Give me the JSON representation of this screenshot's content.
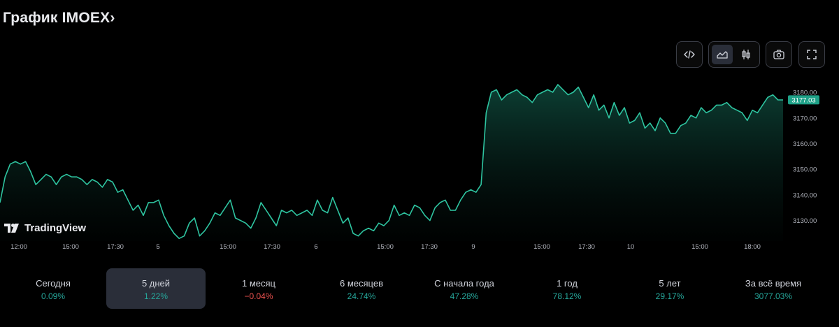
{
  "title": "График IMOEX›",
  "toolbar": {
    "embed_icon": "code-icon",
    "area_icon": "area-chart-icon",
    "candles_icon": "candlestick-icon",
    "snapshot_icon": "camera-icon",
    "fullscreen_icon": "fullscreen-icon"
  },
  "watermark": "TradingView",
  "colors": {
    "line": "#2ec4a0",
    "positive": "#26a69a",
    "negative": "#ef5350",
    "badge": "#1fa188",
    "background": "#000000"
  },
  "periods": [
    {
      "label": "Сегодня",
      "value": "0.09%",
      "dir": "up",
      "active": false
    },
    {
      "label": "5 дней",
      "value": "1.22%",
      "dir": "up",
      "active": true
    },
    {
      "label": "1 месяц",
      "value": "−0.04%",
      "dir": "down",
      "active": false
    },
    {
      "label": "6 месяцев",
      "value": "24.74%",
      "dir": "up",
      "active": false
    },
    {
      "label": "С начала года",
      "value": "47.28%",
      "dir": "up",
      "active": false
    },
    {
      "label": "1 год",
      "value": "78.12%",
      "dir": "up",
      "active": false
    },
    {
      "label": "5 лет",
      "value": "29.17%",
      "dir": "up",
      "active": false
    },
    {
      "label": "За всё время",
      "value": "3077.03%",
      "dir": "up",
      "active": false
    }
  ],
  "chart_data": {
    "type": "area",
    "x_tick_labels": [
      "12:00",
      "15:00",
      "17:30",
      "5",
      "15:00",
      "17:30",
      "6",
      "15:00",
      "17:30",
      "9",
      "15:00",
      "17:30",
      "10",
      "15:00",
      "18:00"
    ],
    "y_ticks": [
      3130,
      3140,
      3150,
      3160,
      3170,
      3180
    ],
    "y_tick_labels": [
      "3130.00",
      "3140.00",
      "3150.00",
      "3160.00",
      "3170.00",
      "3180.00"
    ],
    "ylim": [
      3122,
      3186
    ],
    "last_value": 3177.03,
    "last_value_label": "3177.03",
    "grid": false,
    "series": [
      {
        "values": [
          3137,
          3147,
          3152,
          3153,
          3152,
          3153,
          3149,
          3144,
          3146,
          3148,
          3147,
          3144,
          3147,
          3148,
          3147,
          3147,
          3146,
          3144,
          3146,
          3145,
          3143,
          3146,
          3145,
          3141,
          3142,
          3138,
          3134,
          3136,
          3132,
          3137,
          3137,
          3138,
          3132,
          3128,
          3125,
          3123,
          3124,
          3129,
          3131,
          3124,
          3126,
          3129,
          3133,
          3132,
          3135,
          3138,
          3131,
          3130,
          3129,
          3127,
          3131,
          3137,
          3134,
          3131,
          3128,
          3134,
          3133,
          3134,
          3132,
          3133,
          3134,
          3132,
          3138,
          3134,
          3133,
          3139,
          3134,
          3129,
          3131,
          3125,
          3124,
          3126,
          3127,
          3126,
          3129,
          3128,
          3130,
          3136,
          3132,
          3133,
          3132,
          3136,
          3135,
          3132,
          3130,
          3135,
          3137,
          3138,
          3134,
          3134,
          3138,
          3141,
          3142,
          3141,
          3144,
          3172,
          3180,
          3181,
          3177,
          3179,
          3180,
          3181,
          3179,
          3178,
          3176,
          3179,
          3180,
          3181,
          3180,
          3183,
          3181,
          3179,
          3180,
          3182,
          3178,
          3174,
          3179,
          3173,
          3175,
          3170,
          3176,
          3171,
          3174,
          3168,
          3169,
          3172,
          3166,
          3168,
          3165,
          3170,
          3168,
          3164,
          3164,
          3167,
          3168,
          3171,
          3170,
          3174,
          3172,
          3173,
          3175,
          3175,
          3176,
          3174,
          3173,
          3172,
          3169,
          3173,
          3172,
          3175,
          3178,
          3179,
          3177,
          3177
        ]
      }
    ]
  }
}
